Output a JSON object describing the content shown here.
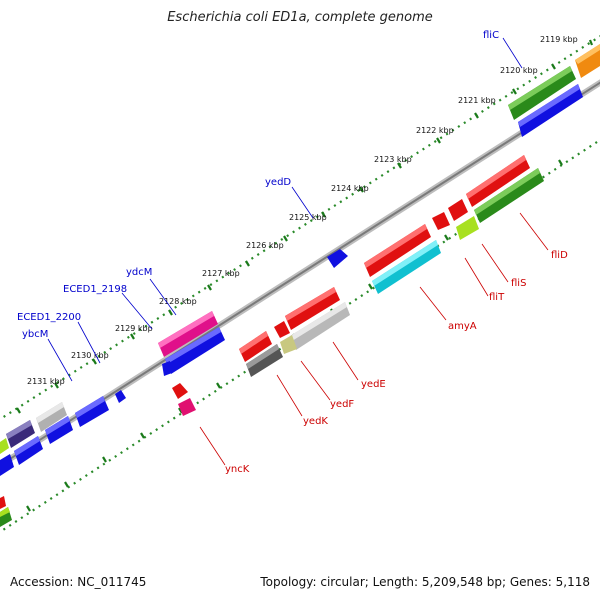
{
  "title": "Escherichia coli ED1a, complete genome",
  "footer": {
    "accession": "Accession: NC_011745",
    "summary": "Topology: circular; Length: 5,209,548 bp; Genes: 5,118"
  },
  "colors": {
    "backbone": "#909090",
    "tick": "#1a7a1a",
    "label_forward": "#0000cc",
    "label_reverse": "#cc0000"
  },
  "tick_labels": [
    "2119 kbp",
    "2120 kbp",
    "2121 kbp",
    "2122 kbp",
    "2123 kbp",
    "2124 kbp",
    "2125 kbp",
    "2126 kbp",
    "2127 kbp",
    "2128 kbp",
    "2129 kbp",
    "2130 kbp",
    "2131 kbp"
  ],
  "gene_labels_forward": [
    "fliC",
    "yedD",
    "ydcM",
    "ECED1_2198",
    "ECED1_2200",
    "ybcM"
  ],
  "gene_labels_reverse": [
    "fliD",
    "fliS",
    "fliT",
    "amyA",
    "yedE",
    "yedF",
    "yedK",
    "yncK"
  ]
}
